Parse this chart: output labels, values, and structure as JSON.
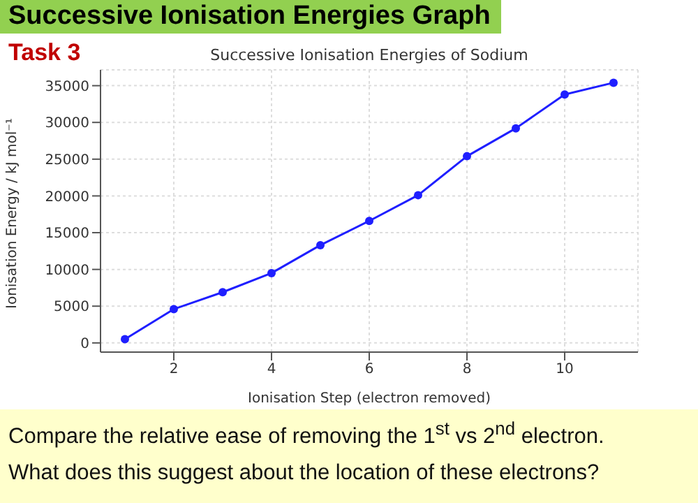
{
  "chart_data": {
    "type": "line",
    "title": "Successive Ionisation Energies of Sodium",
    "xlabel": "Ionisation Step (electron removed)",
    "ylabel": "Ionisation Energy / kJ mol⁻¹",
    "annotations": [
      "Successive Ionisation Energies Graph",
      "Task 3",
      "Compare the relative ease of removing the 1$^{st}$  vs 2$^{nd}$  electron.",
      "What does this suggest about the location of these electrons?"
    ],
    "x": [
      1,
      2,
      3,
      4,
      5,
      6,
      7,
      8,
      9,
      10,
      11
    ],
    "series": [
      {
        "color": "#1f1fff",
        "values": [
          500,
          4600,
          6900,
          9500,
          13300,
          16600,
          20100,
          25400,
          29200,
          33800,
          35400
        ]
      }
    ],
    "xlim": [
      0.5,
      11.5
    ],
    "xticks": [
      2,
      4,
      6,
      8,
      10
    ],
    "ylim": [
      -1250,
      37150
    ],
    "yticks": [
      0,
      5000,
      10000,
      15000,
      20000,
      25000,
      30000,
      35000
    ],
    "grid": true,
    "marker": "circle",
    "line_style": "solid"
  }
}
